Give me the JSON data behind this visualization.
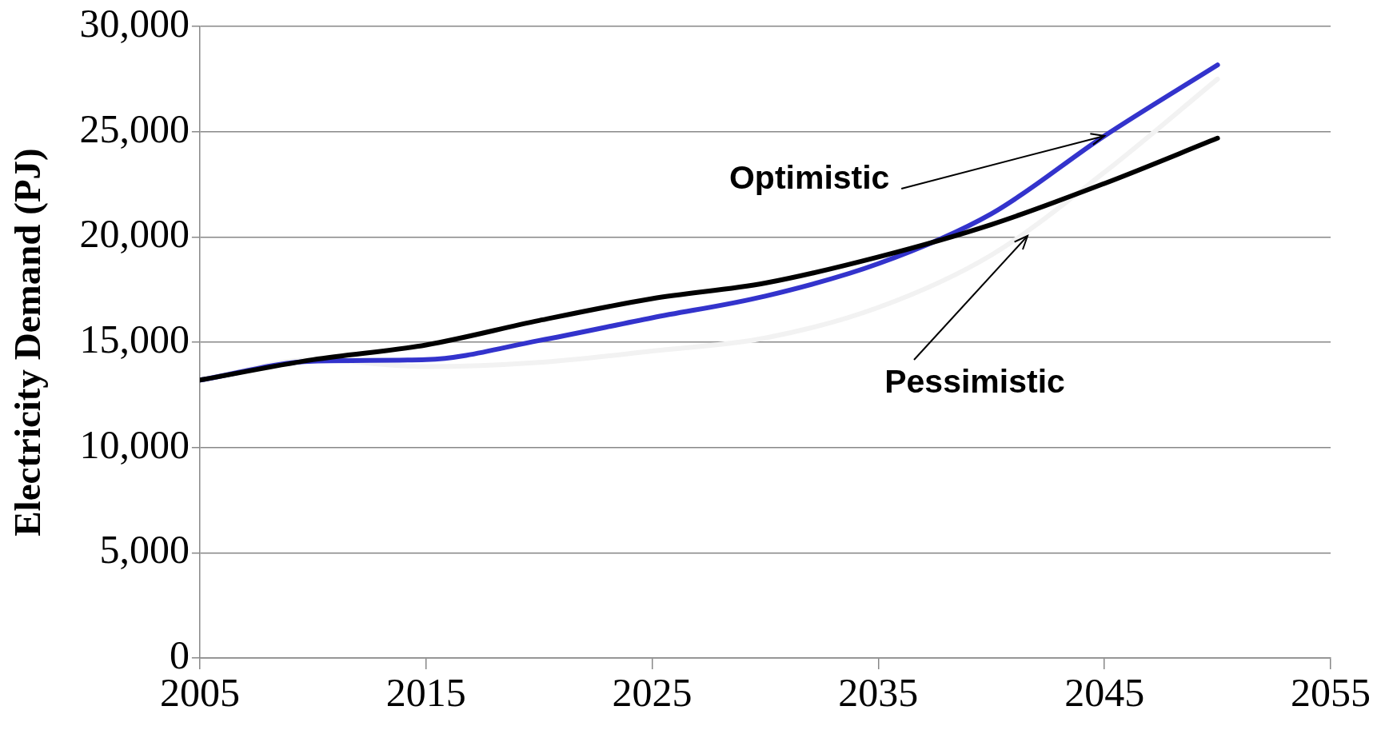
{
  "chart_data": {
    "type": "line",
    "ylabel": "Electricity Demand (PJ)",
    "x": [
      2005,
      2010,
      2015,
      2020,
      2025,
      2030,
      2035,
      2040,
      2045,
      2050
    ],
    "series": [
      {
        "color": "#000000",
        "values": [
          13200,
          14170,
          14870,
          16030,
          17070,
          17810,
          19050,
          20590,
          22540,
          24690
        ]
      },
      {
        "color": "#3333cc",
        "values": [
          13200,
          14100,
          14170,
          15080,
          16160,
          17190,
          18730,
          21100,
          24800,
          28170
        ]
      },
      {
        "color": "#f2f2f2",
        "values": [
          13200,
          14170,
          13840,
          14040,
          14580,
          15200,
          16650,
          19140,
          23070,
          27500
        ]
      }
    ],
    "xlim": [
      2005,
      2055
    ],
    "xticks": [
      {
        "value": 2005,
        "label": "2005"
      },
      {
        "value": 2015,
        "label": "2015"
      },
      {
        "value": 2025,
        "label": "2025"
      },
      {
        "value": 2035,
        "label": "2035"
      },
      {
        "value": 2045,
        "label": "2045"
      },
      {
        "value": 2055,
        "label": "2055"
      }
    ],
    "ylim": [
      0,
      30000
    ],
    "yticks": [
      {
        "value": 0,
        "label": "0"
      },
      {
        "value": 5000,
        "label": "5,000"
      },
      {
        "value": 10000,
        "label": "10,000"
      },
      {
        "value": 15000,
        "label": "15,000"
      },
      {
        "value": 20000,
        "label": "20,000"
      },
      {
        "value": 25000,
        "label": "25,000"
      },
      {
        "value": 30000,
        "label": "30,000"
      }
    ],
    "grid": "y",
    "legend": false,
    "marker": "none",
    "line_style": "solid",
    "annotations": [
      {
        "text": "Optimistic",
        "x": 2045,
        "y": 24800
      },
      {
        "text": "Pessimistic",
        "x": 2041.6,
        "y": 20050
      }
    ]
  }
}
